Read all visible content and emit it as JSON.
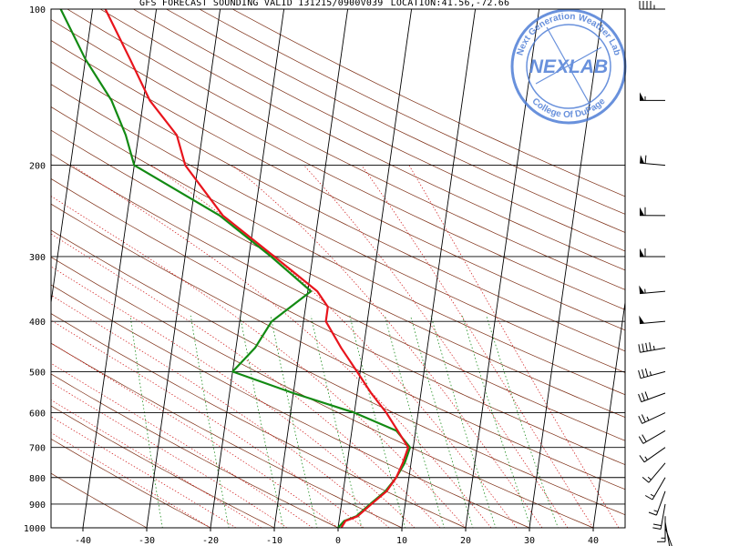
{
  "header": {
    "title": "GFS FORECAST SOUNDING VALID 131215/0900V039",
    "location": "LOCATION:41.56,-72.66"
  },
  "watermark": {
    "name": "NEXLAB",
    "ring_top": "Next Generation Weather Lab",
    "ring_bottom": "College Of DuPage",
    "color": "#4f7ed6"
  },
  "colors": {
    "temperature": "#e8141c",
    "dewpoint": "#138a13",
    "isotherm": "#000000",
    "dry_adiabat": "#7a2a10",
    "moist_adiabat": "#d01818",
    "mixing_ratio": "#1c8c1c"
  },
  "chart_data": {
    "type": "line",
    "subtype": "skew-t log-p",
    "xlabel": "",
    "ylabel": "",
    "x_ticks": [
      "-40",
      "-30",
      "-20",
      "-10",
      "0",
      "10",
      "20",
      "30",
      "40"
    ],
    "y_ticks": [
      "100",
      "200",
      "300",
      "400",
      "500",
      "600",
      "700",
      "800",
      "900",
      "1000"
    ],
    "xlim": [
      -45,
      45
    ],
    "ylim_hpa": [
      1000,
      100
    ],
    "y_scale": "log",
    "grid": true,
    "series": [
      {
        "key": "temperature",
        "unit": "C",
        "points": [
          [
            1000,
            0.5
          ],
          [
            970,
            1.0
          ],
          [
            950,
            2.8
          ],
          [
            900,
            4.7
          ],
          [
            850,
            6.8
          ],
          [
            800,
            8.0
          ],
          [
            750,
            8.7
          ],
          [
            700,
            9.2
          ],
          [
            650,
            7.2
          ],
          [
            600,
            5.0
          ],
          [
            550,
            2.2
          ],
          [
            500,
            -0.5
          ],
          [
            450,
            -3.5
          ],
          [
            400,
            -6.5
          ],
          [
            375,
            -6.5
          ],
          [
            350,
            -8.5
          ],
          [
            300,
            -16.0
          ],
          [
            250,
            -25.0
          ],
          [
            200,
            -32.0
          ],
          [
            175,
            -34.0
          ],
          [
            150,
            -39.0
          ],
          [
            125,
            -43.0
          ],
          [
            100,
            -48.0
          ]
        ]
      },
      {
        "key": "dewpoint",
        "unit": "C",
        "points": [
          [
            1000,
            0.0
          ],
          [
            970,
            0.8
          ],
          [
            950,
            2.6
          ],
          [
            900,
            4.5
          ],
          [
            850,
            6.6
          ],
          [
            800,
            8.0
          ],
          [
            750,
            9.0
          ],
          [
            700,
            9.5
          ],
          [
            650,
            7.0
          ],
          [
            600,
            0.0
          ],
          [
            550,
            -10.0
          ],
          [
            500,
            -20.0
          ],
          [
            450,
            -17.0
          ],
          [
            400,
            -15.0
          ],
          [
            350,
            -9.5
          ],
          [
            300,
            -16.5
          ],
          [
            250,
            -25.5
          ],
          [
            200,
            -40.0
          ],
          [
            175,
            -42.0
          ],
          [
            150,
            -45.0
          ],
          [
            125,
            -50.0
          ],
          [
            100,
            -55.0
          ]
        ]
      }
    ],
    "wind_barbs": [
      {
        "p": 100,
        "dir": 270,
        "kt": 45
      },
      {
        "p": 150,
        "dir": 270,
        "kt": 55
      },
      {
        "p": 200,
        "dir": 275,
        "kt": 60
      },
      {
        "p": 250,
        "dir": 270,
        "kt": 60
      },
      {
        "p": 300,
        "dir": 270,
        "kt": 60
      },
      {
        "p": 350,
        "dir": 265,
        "kt": 55
      },
      {
        "p": 400,
        "dir": 265,
        "kt": 50
      },
      {
        "p": 450,
        "dir": 260,
        "kt": 45
      },
      {
        "p": 500,
        "dir": 255,
        "kt": 35
      },
      {
        "p": 550,
        "dir": 250,
        "kt": 30
      },
      {
        "p": 600,
        "dir": 245,
        "kt": 25
      },
      {
        "p": 650,
        "dir": 240,
        "kt": 20
      },
      {
        "p": 700,
        "dir": 235,
        "kt": 15
      },
      {
        "p": 750,
        "dir": 220,
        "kt": 15
      },
      {
        "p": 800,
        "dir": 210,
        "kt": 15
      },
      {
        "p": 850,
        "dir": 200,
        "kt": 15
      },
      {
        "p": 900,
        "dir": 190,
        "kt": 20
      },
      {
        "p": 950,
        "dir": 180,
        "kt": 15
      },
      {
        "p": 975,
        "dir": 170,
        "kt": 10
      },
      {
        "p": 1000,
        "dir": 160,
        "kt": 5
      }
    ]
  }
}
